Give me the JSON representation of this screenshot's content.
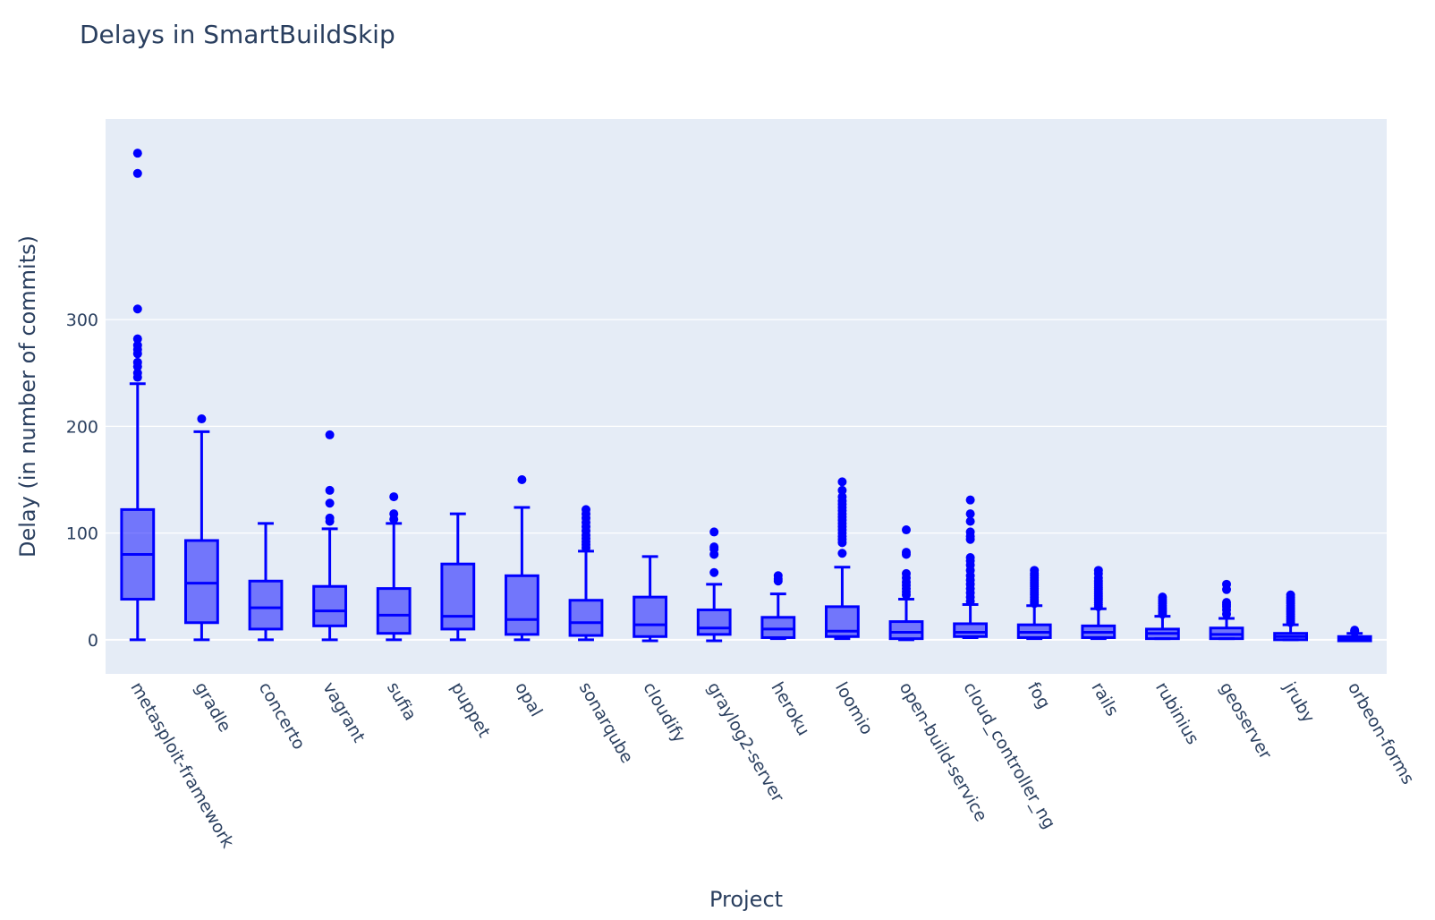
{
  "chart_data": {
    "type": "box",
    "title": "Delays in SmartBuildSkip",
    "xlabel": "Project",
    "ylabel": "Delay (in number of commits)",
    "ylim": [
      -32,
      488
    ],
    "yticks": [
      0,
      100,
      200,
      300
    ],
    "grid": true,
    "legend": "none",
    "colors": {
      "box_line": "#0000ff",
      "box_fill": "rgba(0,0,255,0.5)",
      "plot_bg": "#e5ecf6"
    },
    "categories": [
      "metasploit-framework",
      "gradle",
      "concerto",
      "vagrant",
      "sufia",
      "puppet",
      "opal",
      "sonarqube",
      "cloudify",
      "graylog2-server",
      "heroku",
      "loomio",
      "open-build-service",
      "cloud_controller_ng",
      "fog",
      "rails",
      "rubinius",
      "geoserver",
      "jruby",
      "orbeon-forms"
    ],
    "boxes": [
      {
        "min": 0,
        "q1": 38,
        "median": 80,
        "q3": 122,
        "max": 240,
        "outliers": [
          246,
          250,
          256,
          260,
          268,
          272,
          276,
          282,
          310,
          437,
          456
        ]
      },
      {
        "min": 0,
        "q1": 16,
        "median": 53,
        "q3": 93,
        "max": 195,
        "outliers": [
          207
        ]
      },
      {
        "min": 0,
        "q1": 10,
        "median": 30,
        "q3": 55,
        "max": 109,
        "outliers": []
      },
      {
        "min": 0,
        "q1": 13,
        "median": 27,
        "q3": 50,
        "max": 104,
        "outliers": [
          111,
          114,
          128,
          140,
          192
        ]
      },
      {
        "min": 0,
        "q1": 6,
        "median": 23,
        "q3": 48,
        "max": 109,
        "outliers": [
          113,
          118,
          134
        ]
      },
      {
        "min": 0,
        "q1": 10,
        "median": 22,
        "q3": 71,
        "max": 118,
        "outliers": []
      },
      {
        "min": 0,
        "q1": 5,
        "median": 19,
        "q3": 60,
        "max": 124,
        "outliers": [
          150
        ]
      },
      {
        "min": 0,
        "q1": 4,
        "median": 16,
        "q3": 37,
        "max": 83,
        "outliers": [
          86,
          89,
          92,
          95,
          98,
          102,
          106,
          110,
          114,
          118,
          122
        ]
      },
      {
        "min": -1,
        "q1": 3,
        "median": 14,
        "q3": 40,
        "max": 78,
        "outliers": []
      },
      {
        "min": -1,
        "q1": 5,
        "median": 11,
        "q3": 28,
        "max": 52,
        "outliers": [
          63,
          80,
          85,
          87,
          101
        ]
      },
      {
        "min": 1,
        "q1": 2,
        "median": 10,
        "q3": 21,
        "max": 43,
        "outliers": [
          55,
          57,
          60
        ]
      },
      {
        "min": 1,
        "q1": 3,
        "median": 8,
        "q3": 31,
        "max": 68,
        "outliers": [
          81,
          91,
          94,
          97,
          100,
          103,
          106,
          109,
          112,
          115,
          118,
          121,
          124,
          127,
          130,
          134,
          140,
          148
        ]
      },
      {
        "min": 0,
        "q1": 1,
        "median": 7,
        "q3": 17,
        "max": 38,
        "outliers": [
          42,
          45,
          48,
          51,
          54,
          58,
          62,
          80,
          82,
          103
        ]
      },
      {
        "min": 2,
        "q1": 3,
        "median": 7,
        "q3": 15,
        "max": 33,
        "outliers": [
          36,
          40,
          44,
          48,
          52,
          56,
          60,
          65,
          70,
          74,
          77,
          94,
          97,
          101,
          111,
          118,
          131
        ]
      },
      {
        "min": 1,
        "q1": 2,
        "median": 7,
        "q3": 14,
        "max": 32,
        "outliers": [
          34,
          36,
          38,
          40,
          42,
          44,
          46,
          48,
          50,
          52,
          54,
          56,
          58,
          60,
          62,
          65
        ]
      },
      {
        "min": 1,
        "q1": 2,
        "median": 7,
        "q3": 13,
        "max": 29,
        "outliers": [
          31,
          33,
          35,
          37,
          39,
          41,
          43,
          45,
          47,
          49,
          51,
          53,
          55,
          58,
          62,
          65
        ]
      },
      {
        "min": 1,
        "q1": 1,
        "median": 6,
        "q3": 10,
        "max": 22,
        "outliers": [
          24,
          26,
          28,
          30,
          32,
          34,
          36,
          38,
          40
        ]
      },
      {
        "min": 1,
        "q1": 1,
        "median": 5,
        "q3": 11,
        "max": 20,
        "outliers": [
          24,
          28,
          31,
          33,
          35,
          47,
          52
        ]
      },
      {
        "min": 0,
        "q1": 0,
        "median": 3,
        "q3": 6,
        "max": 14,
        "outliers": [
          16,
          18,
          20,
          22,
          24,
          26,
          28,
          30,
          32,
          34,
          36,
          38,
          40,
          42
        ]
      },
      {
        "min": -1,
        "q1": -1,
        "median": 1,
        "q3": 3,
        "max": 6,
        "outliers": [
          7,
          8,
          9
        ]
      }
    ]
  }
}
